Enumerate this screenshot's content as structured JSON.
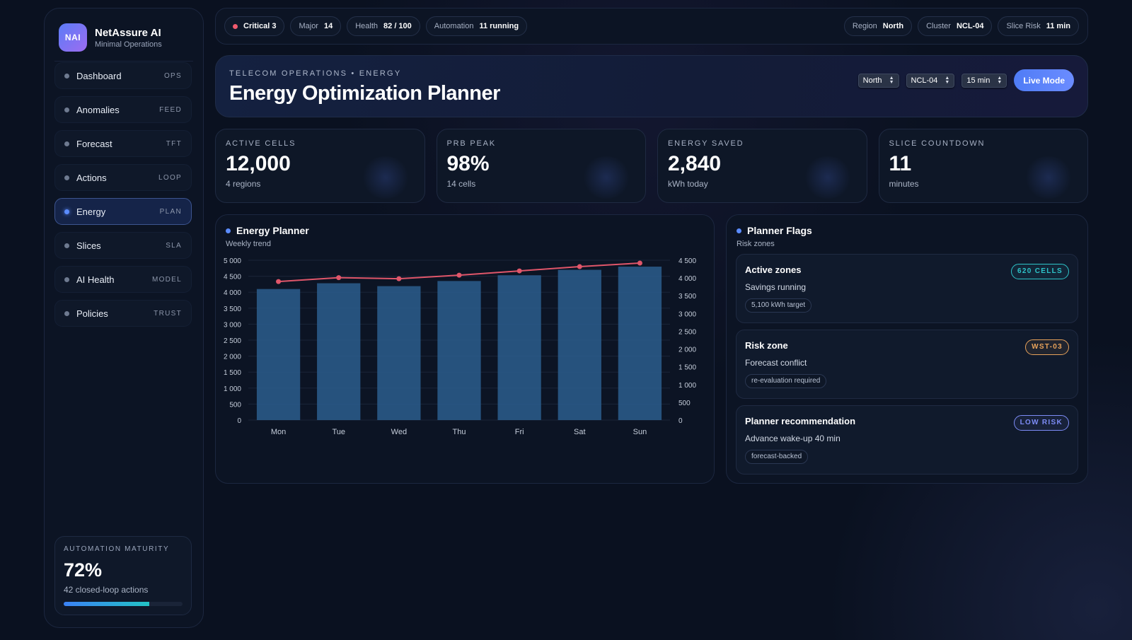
{
  "brand": {
    "logo": "NAI",
    "name": "NetAssure AI",
    "subtitle": "Minimal Operations"
  },
  "sidebar": {
    "items": [
      {
        "label": "Dashboard",
        "tag": "OPS",
        "active": false
      },
      {
        "label": "Anomalies",
        "tag": "FEED",
        "active": false
      },
      {
        "label": "Forecast",
        "tag": "TFT",
        "active": false
      },
      {
        "label": "Actions",
        "tag": "LOOP",
        "active": false
      },
      {
        "label": "Energy",
        "tag": "PLAN",
        "active": true
      },
      {
        "label": "Slices",
        "tag": "SLA",
        "active": false
      },
      {
        "label": "AI Health",
        "tag": "MODEL",
        "active": false
      },
      {
        "label": "Policies",
        "tag": "TRUST",
        "active": false
      }
    ],
    "maturity": {
      "label": "AUTOMATION MATURITY",
      "value": "72%",
      "sub": "42 closed-loop actions",
      "progress": 0.72
    }
  },
  "topbar": {
    "critical": {
      "label": "Critical 3"
    },
    "major": {
      "label": "Major",
      "value": "14"
    },
    "health": {
      "label": "Health",
      "value": "82 / 100"
    },
    "automation": {
      "label": "Automation",
      "value": "11 running"
    },
    "region": {
      "label": "Region",
      "value": "North"
    },
    "cluster": {
      "label": "Cluster",
      "value": "NCL-04"
    },
    "slice_risk": {
      "label": "Slice Risk",
      "value": "11 min"
    }
  },
  "hero": {
    "kicker": "TELECOM OPERATIONS • ENERGY",
    "title": "Energy Optimization Planner",
    "selects": {
      "region": "North",
      "cluster": "NCL-04",
      "interval": "15 min"
    },
    "live_button": "Live Mode"
  },
  "kpis": [
    {
      "label": "ACTIVE CELLS",
      "value": "12,000",
      "sub": "4 regions"
    },
    {
      "label": "PRB PEAK",
      "value": "98%",
      "sub": "14 cells"
    },
    {
      "label": "ENERGY SAVED",
      "value": "2,840",
      "sub": "kWh today"
    },
    {
      "label": "SLICE COUNTDOWN",
      "value": "11",
      "sub": "minutes"
    }
  ],
  "energy_card": {
    "title": "Energy Planner",
    "subtitle": "Weekly trend"
  },
  "chart_data": {
    "type": "bar",
    "categories": [
      "Mon",
      "Tue",
      "Wed",
      "Thu",
      "Fri",
      "Sat",
      "Sun"
    ],
    "series": [
      {
        "kind": "bar",
        "axis": "left",
        "values": [
          4100,
          4280,
          4190,
          4350,
          4530,
          4700,
          4800
        ],
        "color": "#2a5b8a"
      },
      {
        "kind": "line",
        "axis": "right",
        "values": [
          3900,
          4010,
          3980,
          4080,
          4200,
          4320,
          4420
        ],
        "color": "#e0566a"
      }
    ],
    "ylim_left": [
      0,
      5000
    ],
    "ylim_right": [
      0,
      4500
    ],
    "yticks_left": [
      "0",
      "500",
      "1 000",
      "1 500",
      "2 000",
      "2 500",
      "3 000",
      "3 500",
      "4 000",
      "4 500",
      "5 000"
    ],
    "yticks_right": [
      "0",
      "500",
      "1 000",
      "1 500",
      "2 000",
      "2 500",
      "3 000",
      "3 500",
      "4 000",
      "4 500"
    ],
    "grid": true,
    "colors": {
      "bar": "#2a5b8a",
      "line": "#e0566a",
      "grid": "#1a2438",
      "tick": "#c6cedb"
    }
  },
  "flags_card": {
    "title": "Planner Flags",
    "subtitle": "Risk zones",
    "flags": [
      {
        "title": "Active zones",
        "desc": "Savings running",
        "chip": "5,100 kWh target",
        "badge": "620 CELLS",
        "badge_color": "#2ec4c9"
      },
      {
        "title": "Risk zone",
        "desc": "Forecast conflict",
        "chip": "re-evaluation required",
        "badge": "WST-03",
        "badge_color": "#e8a25a"
      },
      {
        "title": "Planner recommendation",
        "desc": "Advance wake-up 40 min",
        "chip": "forecast-backed",
        "badge": "LOW RISK",
        "badge_color": "#7d8cf7"
      }
    ]
  }
}
